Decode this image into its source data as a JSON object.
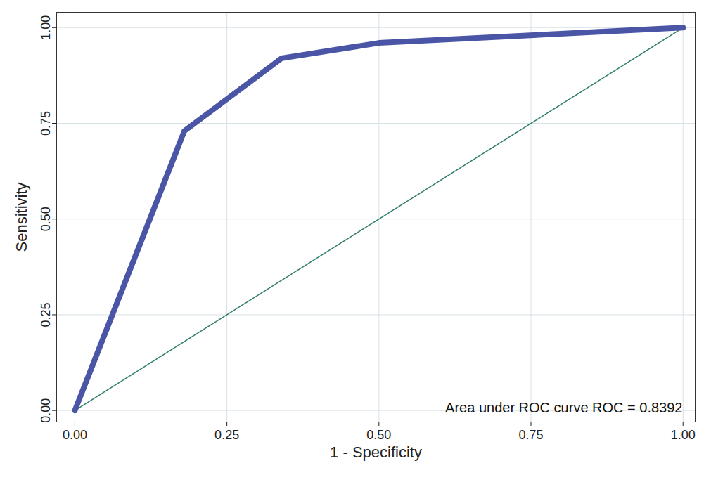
{
  "chart_data": {
    "type": "line",
    "xlabel": "1 - Specificity",
    "ylabel": "Sensitivity",
    "annotation": "Area under ROC curve ROC = 0.8392",
    "series": [
      {
        "x": [
          0,
          0.18,
          0.34,
          0.5,
          1
        ],
        "values": [
          0,
          0.73,
          0.92,
          0.96,
          1
        ],
        "color": "#4a55a6",
        "line_style": "solid"
      },
      {
        "x": [
          0,
          1
        ],
        "values": [
          0,
          1
        ],
        "color": "#2f7d6d",
        "line_style": "solid"
      }
    ],
    "xlim": [
      -0.03,
      1.02
    ],
    "ylim": [
      -0.03,
      1.04
    ],
    "xticks": [
      {
        "value": 0,
        "label": "0.00"
      },
      {
        "value": 0.25,
        "label": "0.25"
      },
      {
        "value": 0.5,
        "label": "0.50"
      },
      {
        "value": 0.75,
        "label": "0.75"
      },
      {
        "value": 1,
        "label": "1.00"
      }
    ],
    "yticks": [
      {
        "value": 0,
        "label": "0.00"
      },
      {
        "value": 0.25,
        "label": "0.25"
      },
      {
        "value": 0.5,
        "label": "0.50"
      },
      {
        "value": 0.75,
        "label": "0.75"
      },
      {
        "value": 1,
        "label": "1.00"
      }
    ],
    "grid": true
  }
}
